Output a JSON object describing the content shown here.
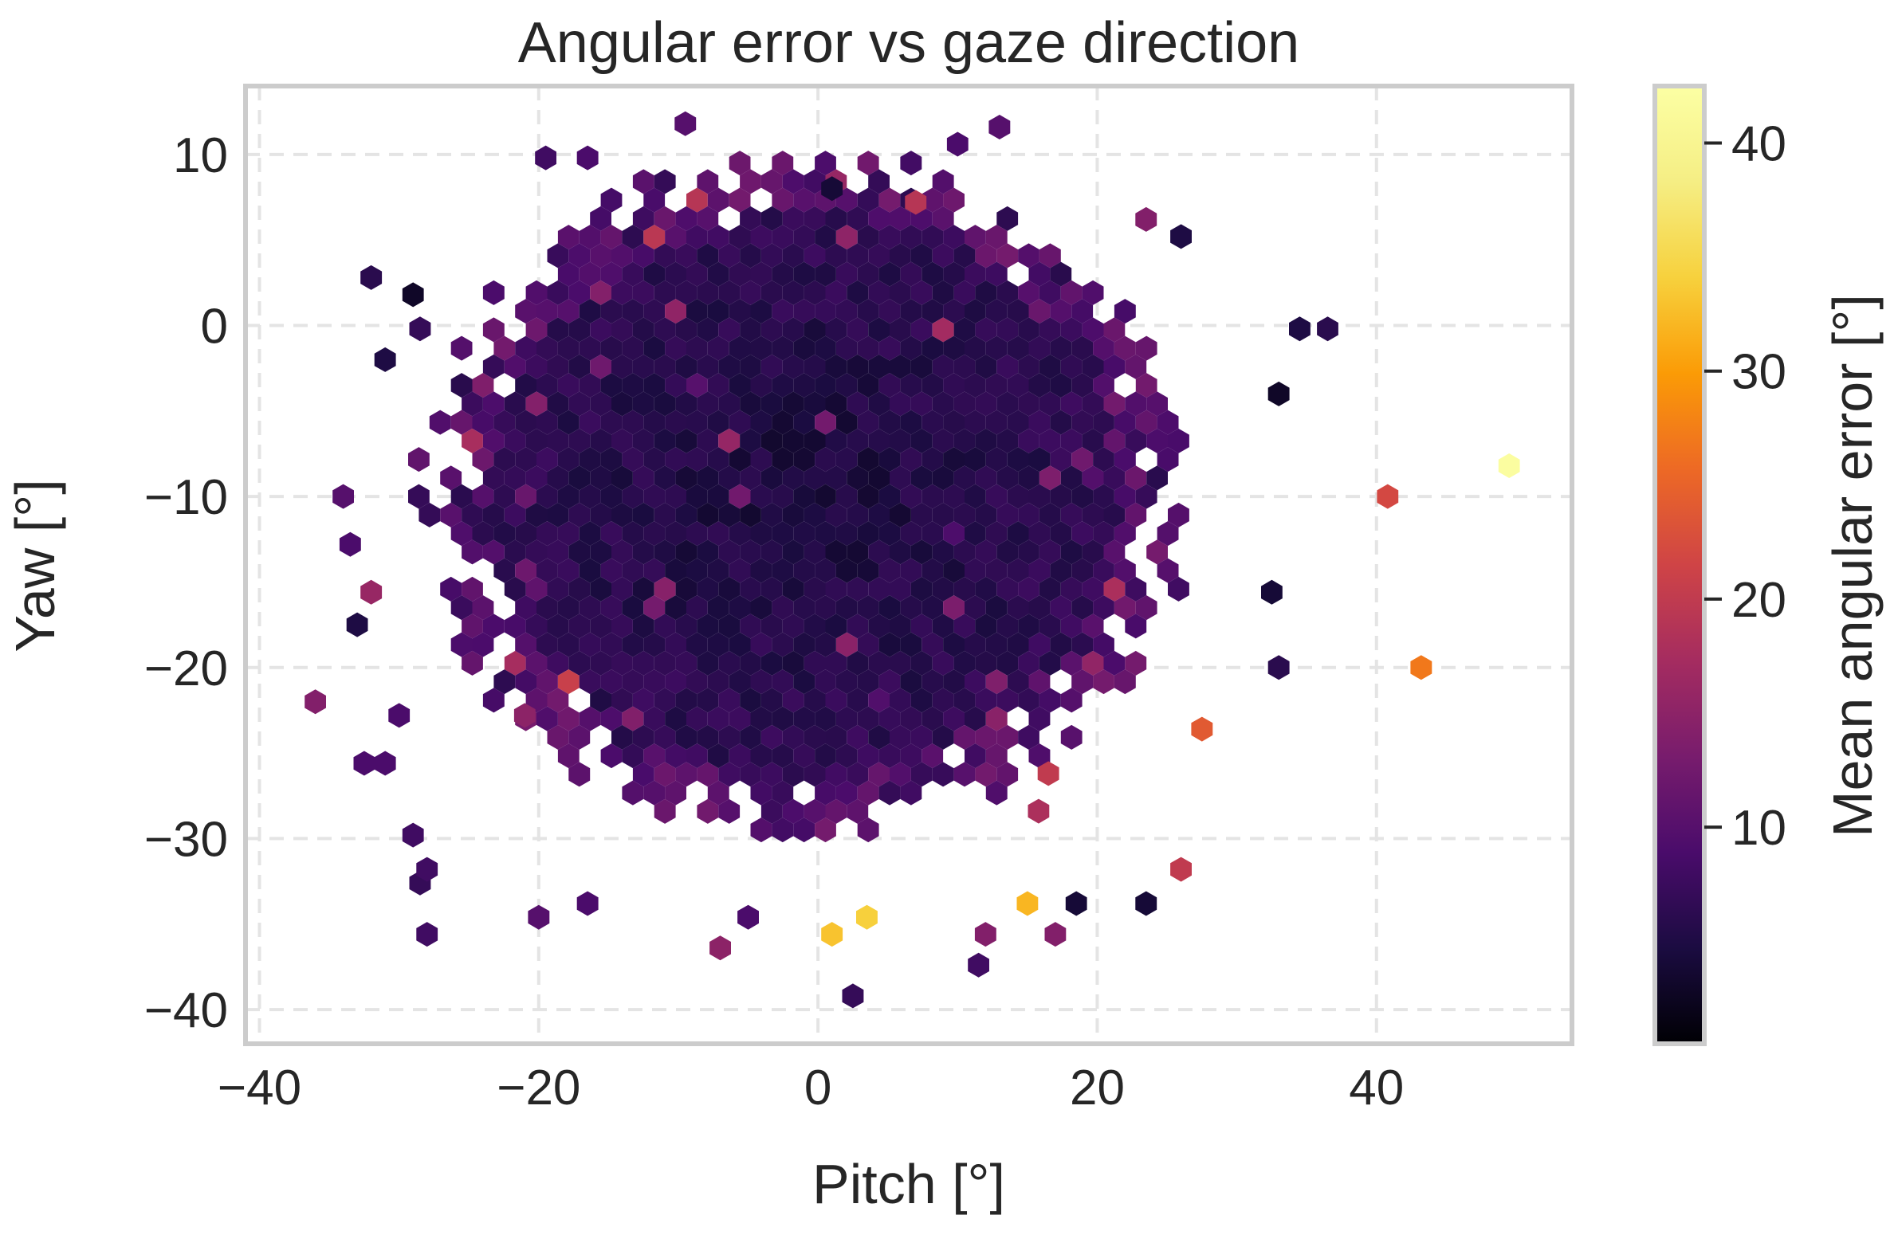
{
  "chart_data": {
    "type": "hexbin",
    "title": "Angular error vs gaze direction",
    "xlabel": "Pitch [°]",
    "ylabel": "Yaw [°]",
    "colorbar_label": "Mean angular error [°]",
    "colormap": "inferno",
    "xlim": [
      -41,
      54
    ],
    "ylim": [
      -42,
      14
    ],
    "xticks": [
      -40,
      -20,
      0,
      20,
      40
    ],
    "yticks": [
      10,
      0,
      -10,
      -20,
      -30,
      -40
    ],
    "clim": [
      0.5,
      42.5
    ],
    "cticks": [
      10,
      20,
      30,
      40
    ],
    "grid": true,
    "core": {
      "center": [
        -1,
        -10
      ],
      "radius_x": 26,
      "radius_y": 19,
      "typical_error": 5,
      "note_values": "dense core of low mean error bins (about 2-8 degrees)"
    },
    "highlight_bins": [
      {
        "x": 49.5,
        "y": -8.2,
        "value": 42
      },
      {
        "x": 40.8,
        "y": -10.0,
        "value": 22
      },
      {
        "x": 43.2,
        "y": -20.0,
        "value": 27
      },
      {
        "x": 27.5,
        "y": -23.6,
        "value": 24
      },
      {
        "x": 15.0,
        "y": -33.8,
        "value": 32
      },
      {
        "x": 3.5,
        "y": -34.6,
        "value": 34
      },
      {
        "x": 1.0,
        "y": -35.6,
        "value": 33
      },
      {
        "x": 7.0,
        "y": 7.2,
        "value": 19
      },
      {
        "x": 26.0,
        "y": -31.8,
        "value": 20
      },
      {
        "x": 16.5,
        "y": -26.2,
        "value": 20
      },
      {
        "x": 15.8,
        "y": -28.4,
        "value": 18
      },
      {
        "x": -7.0,
        "y": -36.4,
        "value": 15
      },
      {
        "x": -36.0,
        "y": -22.0,
        "value": 14
      },
      {
        "x": -32.0,
        "y": -15.6,
        "value": 16
      },
      {
        "x": -21.0,
        "y": -22.8,
        "value": 15
      }
    ],
    "outlier_bins": [
      {
        "x": -34.0,
        "y": -10.0,
        "value": 10
      },
      {
        "x": -33.5,
        "y": -12.8,
        "value": 9
      },
      {
        "x": -33.0,
        "y": -17.5,
        "value": 5
      },
      {
        "x": -32.5,
        "y": -25.6,
        "value": 9
      },
      {
        "x": -31.0,
        "y": -25.6,
        "value": 9
      },
      {
        "x": -30.0,
        "y": -22.8,
        "value": 9
      },
      {
        "x": -29.0,
        "y": -29.8,
        "value": 8
      },
      {
        "x": -28.5,
        "y": -32.6,
        "value": 7
      },
      {
        "x": -28.0,
        "y": -31.8,
        "value": 8
      },
      {
        "x": -28.0,
        "y": -35.6,
        "value": 8
      },
      {
        "x": -20.0,
        "y": -34.6,
        "value": 10
      },
      {
        "x": -16.5,
        "y": -33.8,
        "value": 9
      },
      {
        "x": -32.0,
        "y": 2.8,
        "value": 6
      },
      {
        "x": -31.0,
        "y": -2.0,
        "value": 5
      },
      {
        "x": -29.0,
        "y": 1.8,
        "value": 3
      },
      {
        "x": -28.5,
        "y": -0.2,
        "value": 7
      },
      {
        "x": -16.5,
        "y": 9.8,
        "value": 9
      },
      {
        "x": -9.5,
        "y": 11.8,
        "value": 10
      },
      {
        "x": -19.5,
        "y": 9.8,
        "value": 8
      },
      {
        "x": 10.0,
        "y": 10.6,
        "value": 9
      },
      {
        "x": 13.0,
        "y": 11.6,
        "value": 10
      },
      {
        "x": 1.0,
        "y": 8.0,
        "value": 4
      },
      {
        "x": 34.5,
        "y": -0.2,
        "value": 5
      },
      {
        "x": 36.5,
        "y": -0.2,
        "value": 6
      },
      {
        "x": 33.0,
        "y": -4.0,
        "value": 3
      },
      {
        "x": 33.0,
        "y": -20.0,
        "value": 6
      },
      {
        "x": 32.5,
        "y": -15.6,
        "value": 4
      },
      {
        "x": 11.5,
        "y": -37.4,
        "value": 8
      },
      {
        "x": 2.5,
        "y": -39.2,
        "value": 7
      },
      {
        "x": 23.5,
        "y": 6.2,
        "value": 14
      },
      {
        "x": 26.0,
        "y": 5.2,
        "value": 5
      },
      {
        "x": -5.0,
        "y": -34.6,
        "value": 9
      },
      {
        "x": 23.5,
        "y": -33.8,
        "value": 4
      },
      {
        "x": 18.5,
        "y": -33.8,
        "value": 4
      },
      {
        "x": 12.0,
        "y": -35.6,
        "value": 14
      },
      {
        "x": 17.0,
        "y": -35.6,
        "value": 14
      }
    ]
  }
}
